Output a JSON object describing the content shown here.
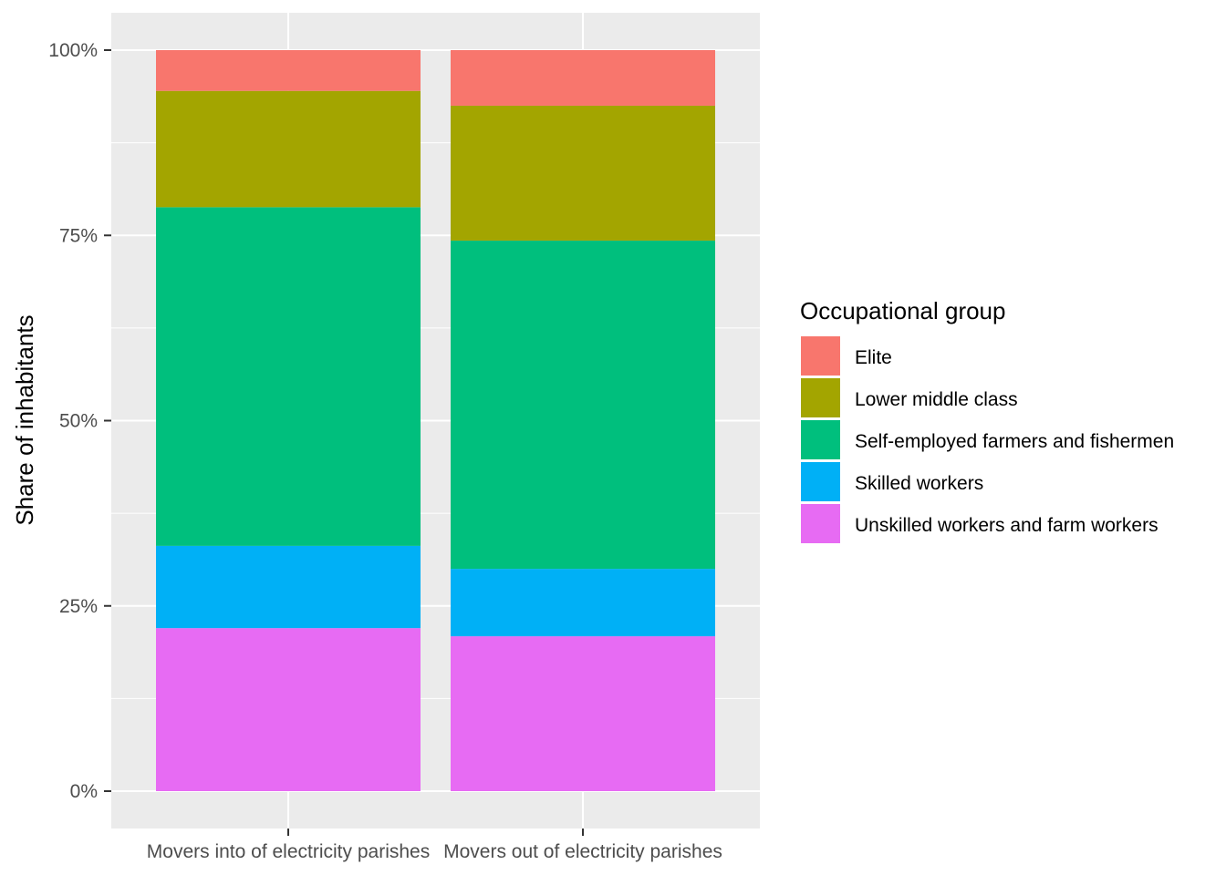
{
  "chart_data": {
    "type": "bar",
    "stacked": true,
    "categories": [
      "Movers into of electricity parishes",
      "Movers out of electricity parishes"
    ],
    "series": [
      {
        "name": "Elite",
        "color": "#F8766D",
        "values": [
          5.5,
          7.5
        ]
      },
      {
        "name": "Lower middle class",
        "color": "#A3A500",
        "values": [
          15.7,
          18.2
        ]
      },
      {
        "name": "Self-employed farmers and fishermen",
        "color": "#00BF7D",
        "values": [
          45.7,
          44.3
        ]
      },
      {
        "name": "Skilled workers",
        "color": "#00B0F6",
        "values": [
          11.1,
          9.1
        ]
      },
      {
        "name": "Unskilled workers and farm workers",
        "color": "#E76BF3",
        "values": [
          22.0,
          20.9
        ]
      }
    ],
    "ylabel": "Share of inhabitants",
    "xlabel": "",
    "ylim": [
      0,
      100
    ],
    "yticks": [
      0,
      25,
      50,
      75,
      100
    ],
    "ytick_labels": [
      "0%",
      "25%",
      "50%",
      "75%",
      "100%"
    ],
    "grid": true,
    "legend": {
      "title": "Occupational group",
      "placement": "right"
    }
  }
}
